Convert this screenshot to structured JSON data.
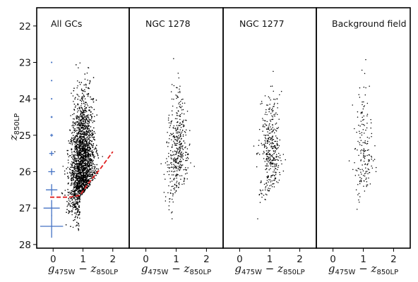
{
  "chart_data": {
    "type": "scatter",
    "panels": [
      {
        "title": "All GCs",
        "n_points": 3200,
        "color_mean": 1.0,
        "color_scale": 0.55,
        "mag_peak": 26.0
      },
      {
        "title": "NGC 1278",
        "n_points": 420,
        "color_mean": 1.05,
        "color_scale": 0.5,
        "mag_peak": 25.6
      },
      {
        "title": "NGC 1277",
        "n_points": 380,
        "color_mean": 1.05,
        "color_scale": 0.5,
        "mag_peak": 25.6
      },
      {
        "title": "Background field",
        "n_points": 170,
        "color_mean": 1.0,
        "color_scale": 0.45,
        "mag_peak": 25.6
      }
    ],
    "xlabel": {
      "g": "g",
      "g_sub": "475W",
      "minus": " − ",
      "z": "z",
      "z_sub": "850LP"
    },
    "ylabel": {
      "z": "z",
      "z_sub": "850LP"
    },
    "xlim": [
      -0.55,
      2.55
    ],
    "ylim": [
      28.1,
      21.5
    ],
    "xticks": [
      "0",
      "1",
      "2"
    ],
    "yticks": [
      "22",
      "23",
      "24",
      "25",
      "26",
      "27",
      "28"
    ],
    "point_color": "#000000",
    "error_bars": {
      "color": "#4472c4",
      "x": -0.05,
      "points": [
        {
          "mag": 23.0,
          "xerr": 0.01
        },
        {
          "mag": 23.5,
          "xerr": 0.01
        },
        {
          "mag": 24.0,
          "xerr": 0.015
        },
        {
          "mag": 24.5,
          "xerr": 0.02
        },
        {
          "mag": 25.0,
          "xerr": 0.03
        },
        {
          "mag": 25.5,
          "xerr": 0.05
        },
        {
          "mag": 26.0,
          "xerr": 0.07
        },
        {
          "mag": 26.5,
          "xerr": 0.12
        },
        {
          "mag": 27.0,
          "xerr": 0.17
        },
        {
          "mag": 27.5,
          "xerr": 0.24
        }
      ]
    },
    "completeness_limit": {
      "color": "#e02020",
      "x": [
        -0.1,
        0.55,
        0.9,
        1.2,
        1.6,
        2.0
      ],
      "y": [
        26.7,
        26.7,
        26.65,
        26.3,
        25.9,
        25.45
      ]
    }
  }
}
